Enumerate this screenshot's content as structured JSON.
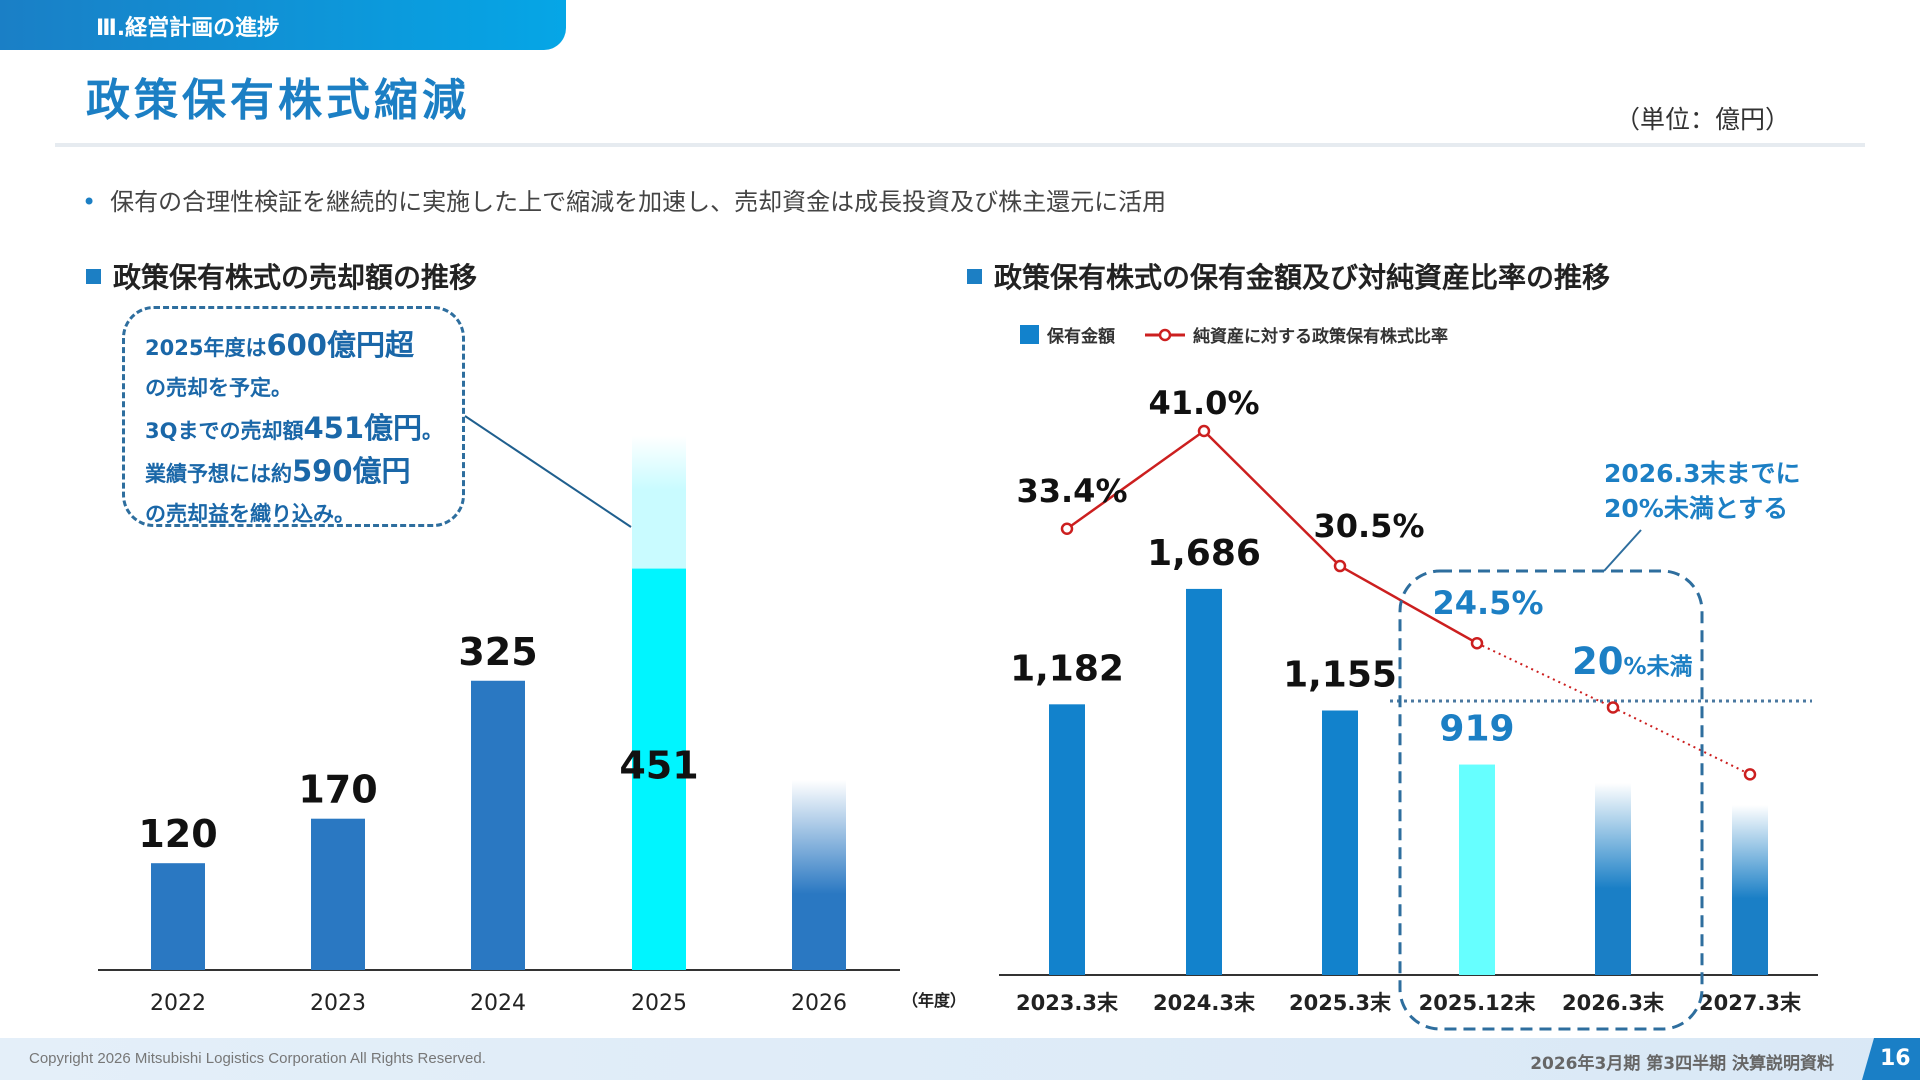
{
  "header": {
    "section_tab": "Ⅲ.経営計画の進捗",
    "title": "政策保有株式縮減",
    "unit": "（単位：億円）"
  },
  "bullet": "保有の合理性検証を継続的に実施した上で縮減を加速し、売却資金は成長投資及び株主還元に活用",
  "left_heading": "政策保有株式の売却額の推移",
  "right_heading": "政策保有株式の保有金額及び対純資産比率の推移",
  "callout": {
    "l1a": "2025年度は",
    "l1b": "600億円超",
    "l2": "の売却を予定。",
    "l3a": "3Qまでの売却額",
    "l3b": "451億円",
    "l3c": "。",
    "l4a": "業績予想には約",
    "l4b": "590億円",
    "l5": "の売却益を織り込み。"
  },
  "target_note": {
    "l1": "2026.3末までに",
    "l2": "20%未満とする",
    "lt_a": "20",
    "lt_b": "%未満"
  },
  "footer": {
    "copyright": "Copyright 2026 Mitsubishi Logistics Corporation All Rights Reserved.",
    "doc": "2026年3月期 第3四半期 決算説明資料",
    "page": "16"
  },
  "colors": {
    "brand": "#1c7fc4",
    "bar": "#2a78c2",
    "highlight": "#00f5ff",
    "ratio_line": "#cc1f1f"
  },
  "chart_data": [
    {
      "type": "bar",
      "categories": [
        "2022",
        "2023",
        "2024",
        "2025",
        "2026"
      ],
      "values": [
        120,
        170,
        325,
        451,
        null
      ],
      "planned_2025": 600,
      "labels": [
        "120",
        "170",
        "325",
        "451",
        ""
      ],
      "xunit": "（年度）",
      "note": "2025 bar: 451 sold through 3Q, lighter segment up to 600 planned; 2026 bar shown faded"
    },
    {
      "type": "bar+line",
      "categories": [
        "2023.3末",
        "2024.3末",
        "2025.3末",
        "2025.12末",
        "2026.3末",
        "2027.3末"
      ],
      "series": [
        {
          "name": "保有金額",
          "type": "bar",
          "values": [
            1182,
            1686,
            1155,
            919,
            null,
            null
          ],
          "labels": [
            "1,182",
            "1,686",
            "1,155",
            "919",
            "",
            ""
          ]
        },
        {
          "name": "純資産に対する政策保有株式比率",
          "type": "line",
          "values": [
            33.4,
            41.0,
            30.5,
            24.5,
            19.5,
            14.3
          ],
          "labels": [
            "33.4%",
            "41.0%",
            "30.5%",
            "24.5%",
            "",
            ""
          ]
        }
      ],
      "target_line": 20
    }
  ]
}
